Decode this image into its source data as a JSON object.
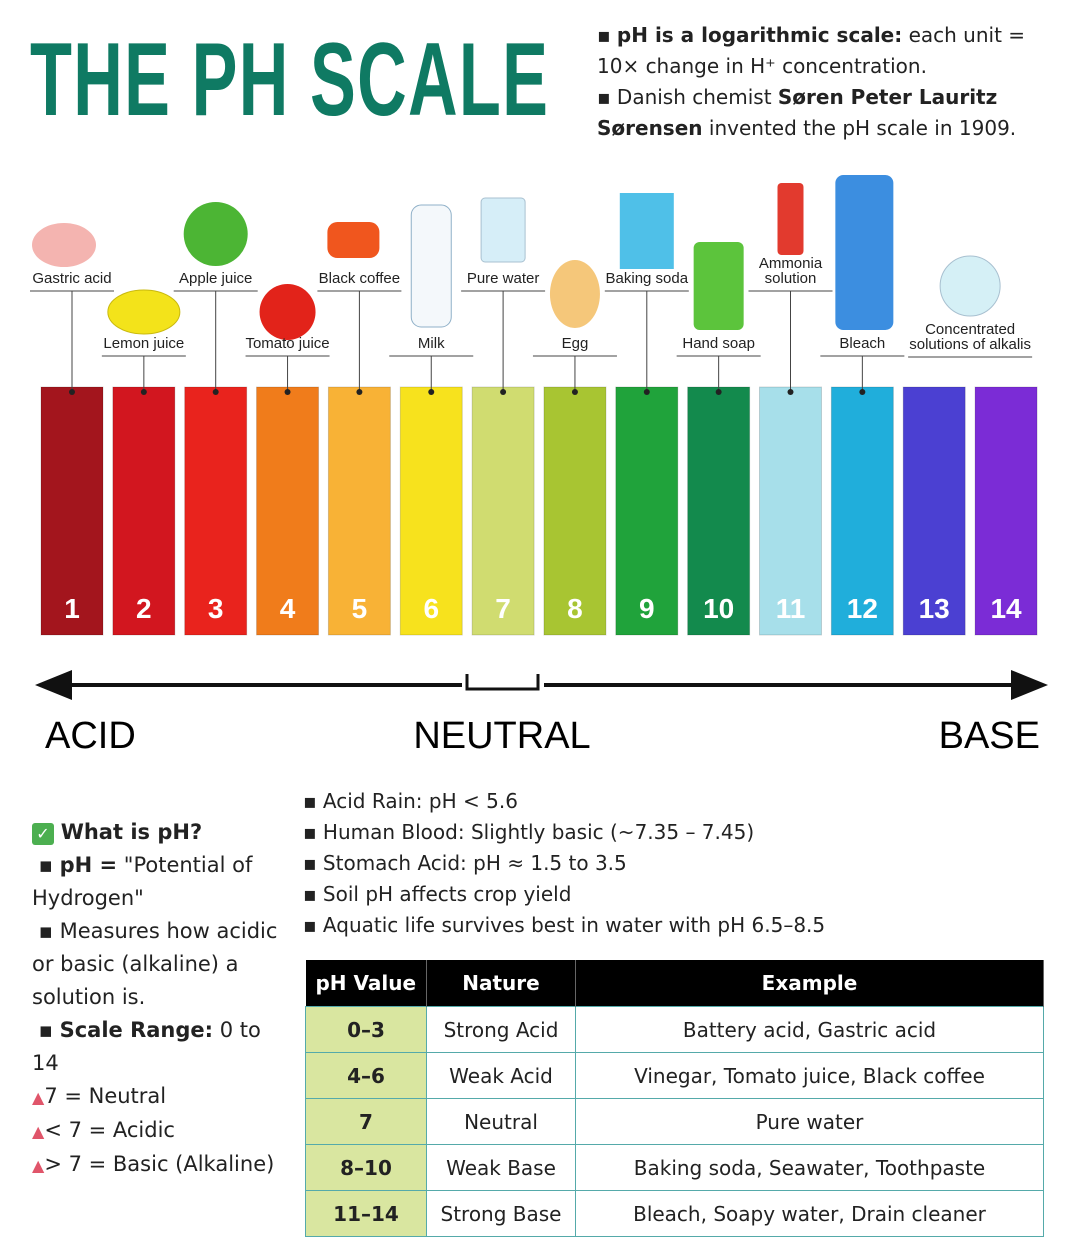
{
  "header": {
    "title": "THE PH SCALE",
    "notes": [
      [
        "pH is a logarithmic scale:",
        "each unit = 10× change in H⁺ concentration."
      ],
      [
        "Danish chemist",
        "Søren Peter Lauritz Sørensen",
        "invented the pH scale in 1909."
      ]
    ]
  },
  "scale": {
    "bars": [
      {
        "label": "1",
        "color": "#a3151d"
      },
      {
        "label": "2",
        "color": "#d2161f"
      },
      {
        "label": "3",
        "color": "#e9231d"
      },
      {
        "label": "4",
        "color": "#f07c1b"
      },
      {
        "label": "5",
        "color": "#f8b236"
      },
      {
        "label": "6",
        "color": "#f7e21d"
      },
      {
        "label": "7",
        "color": "#d0dc70"
      },
      {
        "label": "8",
        "color": "#a8c532"
      },
      {
        "label": "9",
        "color": "#20a33b"
      },
      {
        "label": "10",
        "color": "#138a4d"
      },
      {
        "label": "11",
        "color": "#a7dfea"
      },
      {
        "label": "12",
        "color": "#20aedb"
      },
      {
        "label": "13",
        "color": "#4b40d2"
      },
      {
        "label": "14",
        "color": "#7b2cd6"
      }
    ],
    "substances": [
      [
        "Gastric acid"
      ],
      [
        "Lemon juice"
      ],
      [
        "Apple juice"
      ],
      [
        "Tomato juice"
      ],
      [
        "Black coffee"
      ],
      [
        "Milk"
      ],
      [
        "Pure water"
      ],
      [
        "Egg"
      ],
      [
        "Baking soda"
      ],
      [
        "Hand soap"
      ],
      [
        "Ammonia",
        "solution"
      ],
      [
        "Bleach"
      ],
      [
        "Concentrated",
        "solutions of alkalis"
      ]
    ],
    "axis": {
      "left": "ACID",
      "center": "NEUTRAL",
      "right": "BASE"
    }
  },
  "what_is_ph": {
    "heading": "What is pH?",
    "items": [
      [
        "pH =",
        "\"Potential of Hydrogen\""
      ],
      [
        "Measures how acidic or basic (alkaline) a solution is."
      ],
      [
        "Scale Range:",
        "0 to 14"
      ],
      [
        "7 = Neutral"
      ],
      [
        "< 7 = Acidic"
      ],
      [
        "> 7 = Basic (Alkaline)"
      ]
    ]
  },
  "facts": [
    "Acid Rain: pH < 5.6",
    "Human Blood: Slightly basic (~7.35 – 7.45)",
    "Stomach Acid: pH ≈ 1.5 to 3.5",
    "Soil pH affects crop yield",
    "Aquatic life survives best in water with pH 6.5–8.5"
  ],
  "table": {
    "header": [
      "pH Value",
      "Nature",
      "Example"
    ],
    "rows": [
      [
        "0–3",
        "Strong Acid",
        "Battery acid, Gastric acid"
      ],
      [
        "4–6",
        "Weak Acid",
        "Vinegar, Tomato juice, Black coffee"
      ],
      [
        "7",
        "Neutral",
        "Pure water"
      ],
      [
        "8–10",
        "Weak Base",
        "Baking soda, Seawater, Toothpaste"
      ],
      [
        "11–14",
        "Strong Base",
        "Bleach, Soapy water, Drain cleaner"
      ]
    ]
  }
}
